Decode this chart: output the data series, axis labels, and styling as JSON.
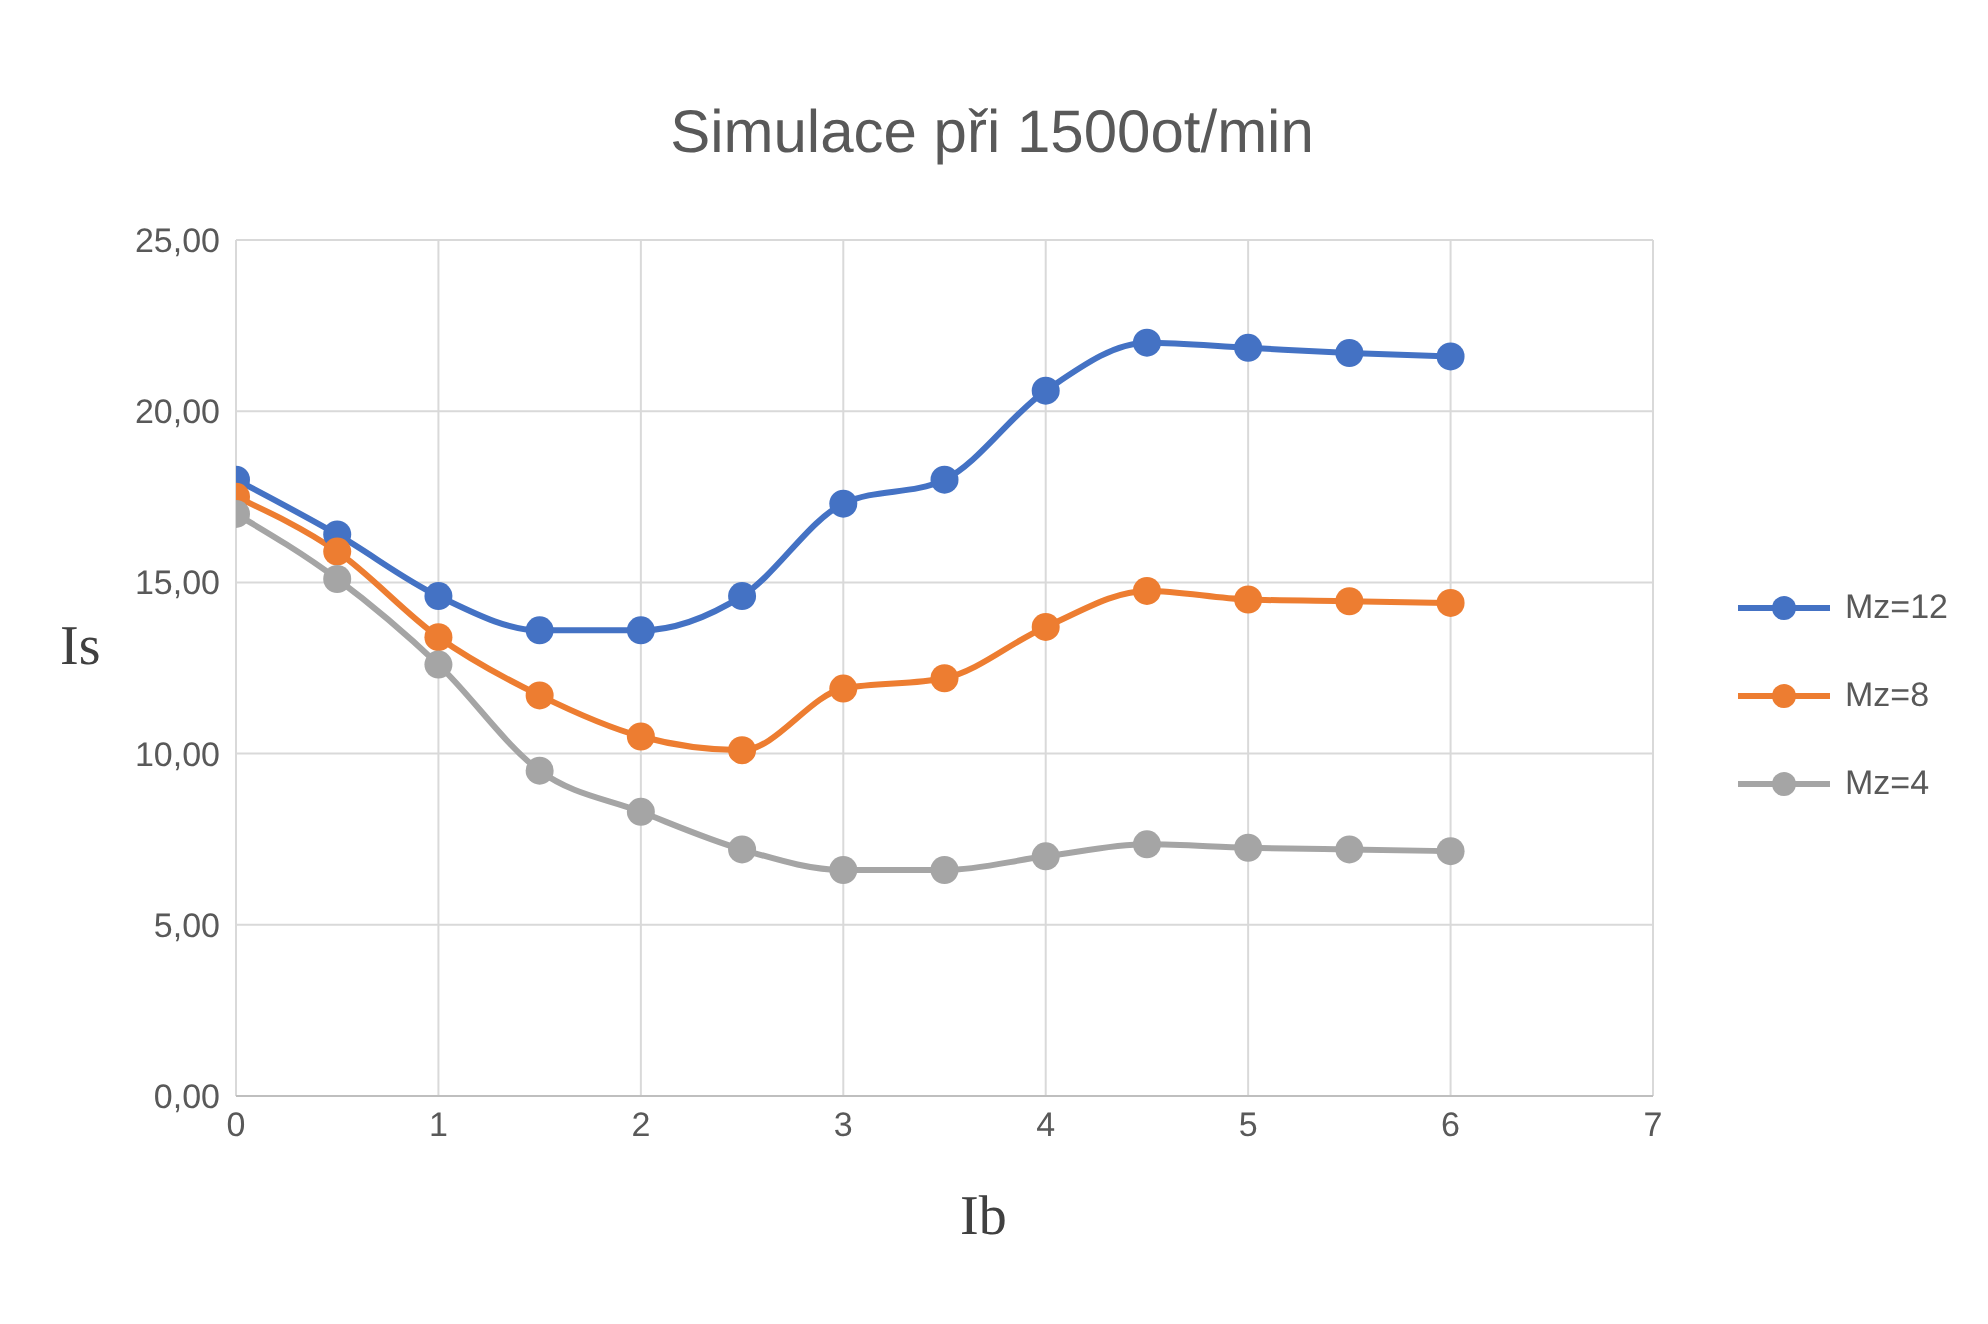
{
  "chart_data": {
    "type": "line",
    "title": "Simulace při 1500ot/min",
    "xlabel": "Ib",
    "ylabel": "Is",
    "x": [
      0,
      0.5,
      1,
      1.5,
      2,
      2.5,
      3,
      3.5,
      4,
      4.5,
      5,
      5.5,
      6
    ],
    "series": [
      {
        "name": "Mz=12",
        "color": "#4472c4",
        "values": [
          18.0,
          16.4,
          14.6,
          13.6,
          13.6,
          14.6,
          17.3,
          18.0,
          20.6,
          22.0,
          21.85,
          21.7,
          21.6
        ]
      },
      {
        "name": "Mz=8",
        "color": "#ed7d31",
        "values": [
          17.5,
          15.9,
          13.4,
          11.7,
          10.5,
          10.1,
          11.9,
          12.2,
          13.7,
          14.75,
          14.5,
          14.45,
          14.4
        ]
      },
      {
        "name": "Mz=4",
        "color": "#a5a5a5",
        "values": [
          17.0,
          15.1,
          12.6,
          9.5,
          8.3,
          7.2,
          6.6,
          6.6,
          7.0,
          7.35,
          7.25,
          7.2,
          7.15
        ]
      }
    ],
    "xlim": [
      0,
      7
    ],
    "xticks": [
      0,
      1,
      2,
      3,
      4,
      5,
      6,
      7
    ],
    "ylim": [
      0,
      25
    ],
    "yticks": [
      {
        "value": 0,
        "label": "0,00"
      },
      {
        "value": 5,
        "label": "5,00"
      },
      {
        "value": 10,
        "label": "10,00"
      },
      {
        "value": 15,
        "label": "15,00"
      },
      {
        "value": 20,
        "label": "20,00"
      },
      {
        "value": 25,
        "label": "25,00"
      }
    ],
    "grid": true,
    "legend": "right",
    "marker": "circle",
    "line_style": "solid"
  }
}
